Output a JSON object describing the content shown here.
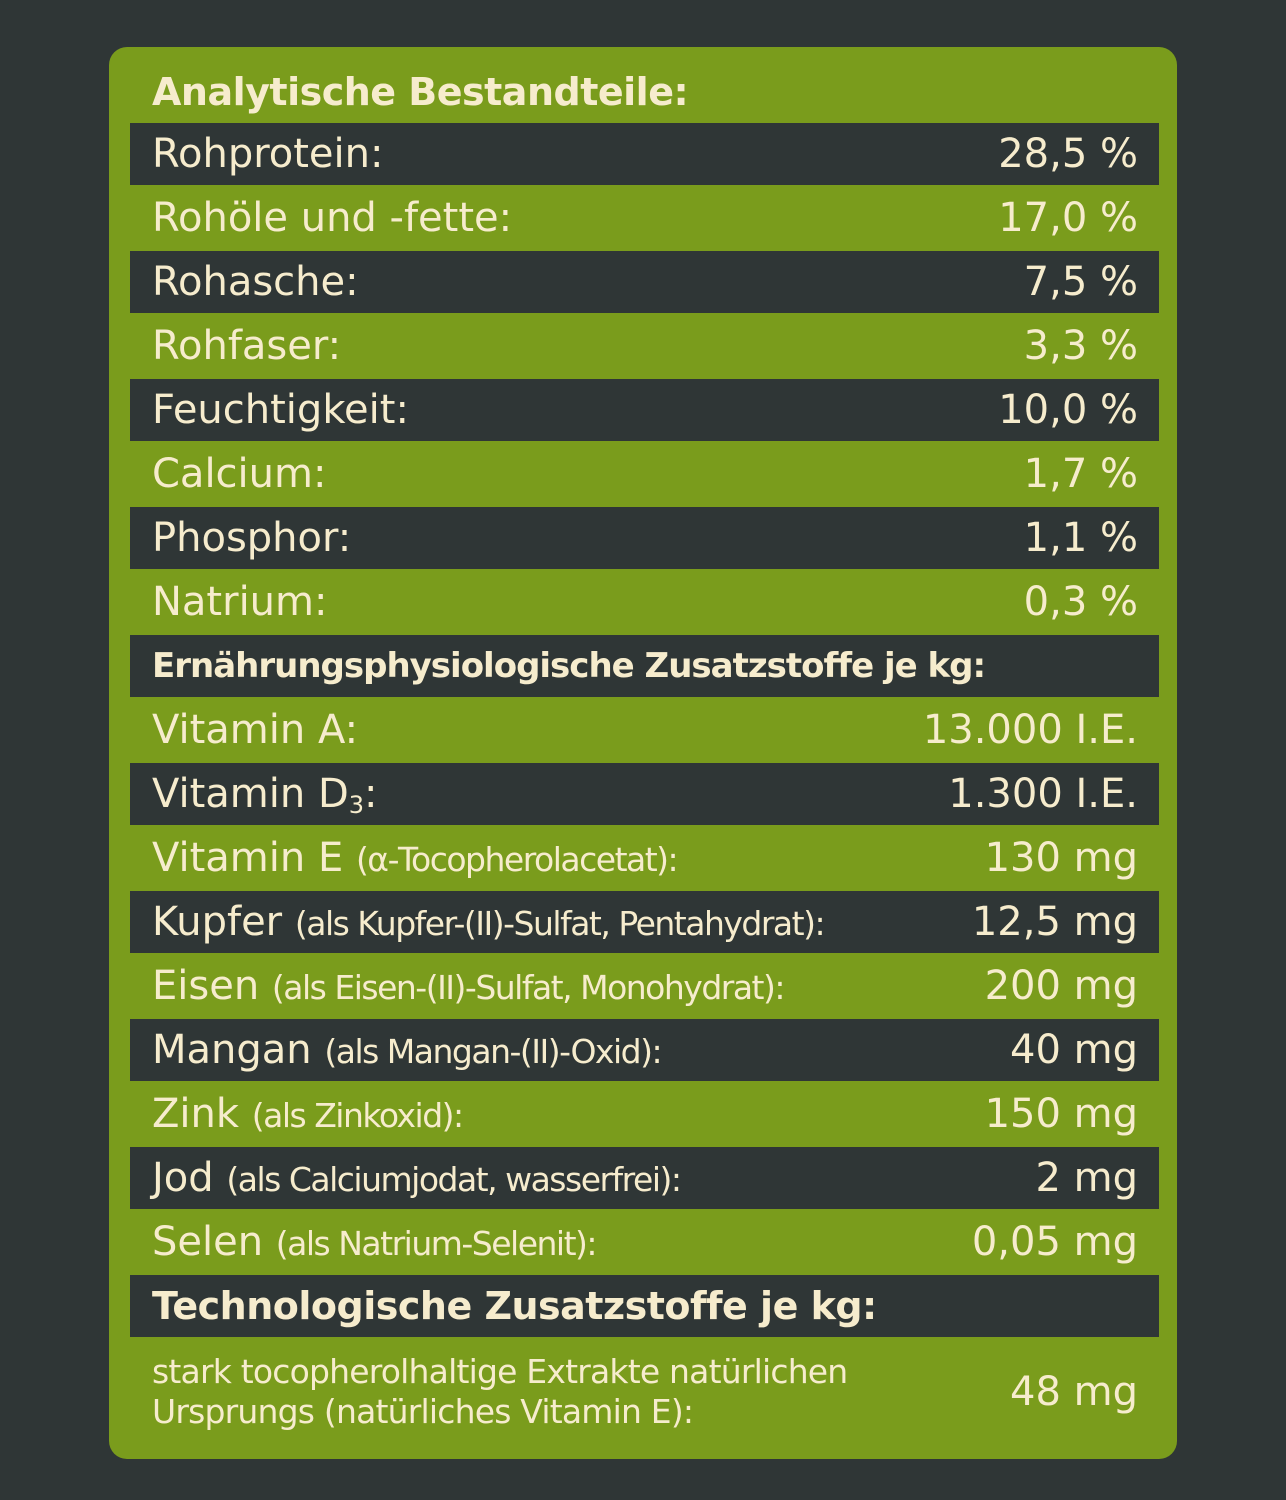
{
  "sections": {
    "analytic": {
      "heading": "Analytische Bestandteile:",
      "rows": [
        {
          "label": "Rohprotein:",
          "value": "28,5 %"
        },
        {
          "label": "Rohöle und -fette:",
          "value": "17,0 %"
        },
        {
          "label": "Rohasche:",
          "value": "7,5 %"
        },
        {
          "label": "Rohfaser:",
          "value": "3,3 %"
        },
        {
          "label": "Feuchtigkeit:",
          "value": "10,0 %"
        },
        {
          "label": "Calcium:",
          "value": "1,7 %"
        },
        {
          "label": "Phosphor:",
          "value": "1,1 %"
        },
        {
          "label": "Natrium:",
          "value": "0,3 %"
        }
      ]
    },
    "nutritional": {
      "heading": "Ernährungsphysiologische Zusatzstoffe je kg:",
      "rows": [
        {
          "label": "Vitamin A:",
          "detail": "",
          "value": "13.000 I.E."
        },
        {
          "label": "Vitamin D",
          "sub": "3",
          "after": ":",
          "value": "1.300 I.E."
        },
        {
          "label": "Vitamin E",
          "detail": "(α-Tocopherolacetat):",
          "value": "130 mg"
        },
        {
          "label": "Kupfer",
          "detail": "(als Kupfer-(II)-Sulfat, Pentahydrat):",
          "value": "12,5 mg"
        },
        {
          "label": "Eisen",
          "detail": "(als Eisen-(II)-Sulfat, Monohydrat):",
          "value": "200 mg"
        },
        {
          "label": "Mangan",
          "detail": "(als Mangan-(II)-Oxid):",
          "value": "40 mg"
        },
        {
          "label": "Zink",
          "detail": "(als Zinkoxid):",
          "value": "150 mg"
        },
        {
          "label": "Jod",
          "detail": "(als Calciumjodat, wasserfrei):",
          "value": "2 mg"
        },
        {
          "label": "Selen",
          "detail": "(als Natrium-Selenit):",
          "value": "0,05 mg"
        }
      ]
    },
    "technological": {
      "heading": "Technologische Zusatzstoffe je kg:",
      "rows": [
        {
          "label": "stark tocopherolhaltige Extrakte natürlichen Ursprungs (natürliches Vitamin E):",
          "value": "48 mg"
        }
      ]
    }
  },
  "colors": {
    "background": "#2f3636",
    "panel": "#7a9c1c",
    "text": "#f6eccd"
  }
}
